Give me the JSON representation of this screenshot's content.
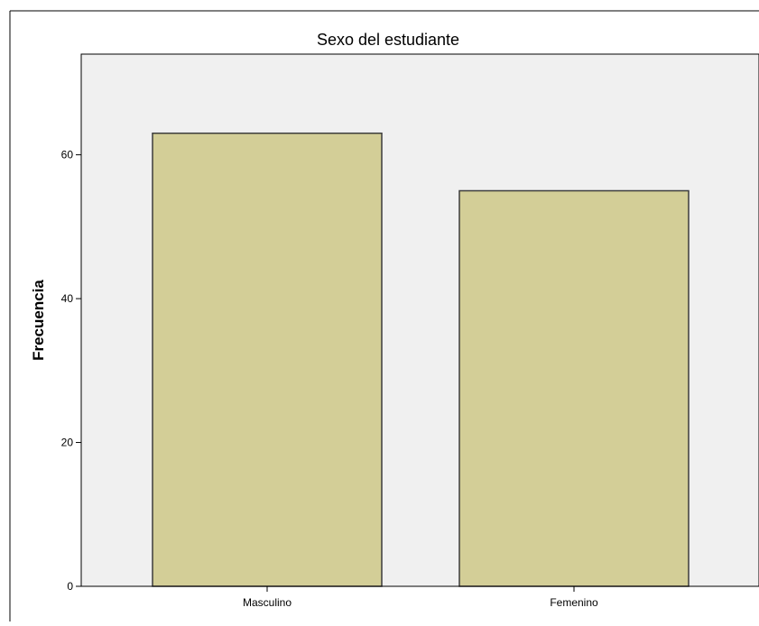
{
  "chart_data": {
    "type": "bar",
    "title": "Sexo del estudiante",
    "xlabel": "",
    "ylabel": "Frecuencia",
    "categories": [
      "Masculino",
      "Femenino"
    ],
    "values": [
      63,
      55
    ],
    "ylim": [
      0,
      74
    ],
    "yticks": [
      0,
      20,
      40,
      60
    ],
    "grid": false,
    "legend": "none",
    "colors": {
      "bar_fill": "#d3ce97",
      "bar_stroke": "#3c3c3c",
      "plot_background": "#f0f0f0",
      "axis": "#000000",
      "frame": "#000000"
    }
  }
}
